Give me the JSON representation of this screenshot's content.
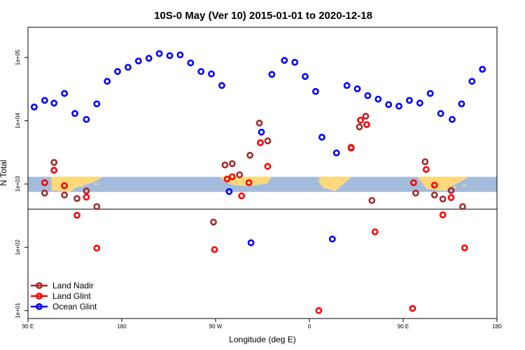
{
  "chart_data": {
    "type": "scatter",
    "title": "10S-0 May (Ver 10)   2015-01-01 to 2020-12-18",
    "xlabel": "Longitude (deg E)",
    "ylabel": "N Total",
    "x_scale": "linear",
    "y_scale": "log",
    "xlim": [
      90,
      540
    ],
    "ylim": [
      7.5,
      300000
    ],
    "x_tick_values": [
      90,
      180,
      270,
      360,
      450,
      540
    ],
    "x_tick_labels": [
      "90 E",
      "180",
      "90 W",
      "0",
      "90 E",
      "180"
    ],
    "y_tick_values": [
      10,
      100,
      1000,
      10000,
      100000
    ],
    "y_tick_labels": [
      "1e+01",
      "1e+02",
      "1e+03",
      "1e+04",
      "1e+05"
    ],
    "reference_line_y": 400,
    "map_band": {
      "y_low": 750,
      "y_high": 1300
    },
    "grid": false,
    "legend_position": "bottom-left",
    "series": [
      {
        "name": "Land Nadir",
        "color": "#a52a2a",
        "points": [
          [
            106,
            720
          ],
          [
            115,
            2200
          ],
          [
            125,
            670
          ],
          [
            137,
            590
          ],
          [
            146,
            780
          ],
          [
            156,
            440
          ],
          [
            268,
            250
          ],
          [
            279,
            2000
          ],
          [
            286,
            2100
          ],
          [
            293,
            1400
          ],
          [
            303,
            2850
          ],
          [
            312,
            9200
          ],
          [
            320,
            4800
          ],
          [
            400,
            3800
          ],
          [
            408,
            8000
          ],
          [
            414,
            11800
          ],
          [
            420,
            550
          ],
          [
            462,
            720
          ],
          [
            471,
            2250
          ],
          [
            480,
            670
          ],
          [
            488,
            580
          ],
          [
            496,
            790
          ],
          [
            507,
            440
          ]
        ]
      },
      {
        "name": "Land Glint",
        "color": "#ff0000",
        "points": [
          [
            106,
            1050
          ],
          [
            115,
            1650
          ],
          [
            125,
            940
          ],
          [
            137,
            320
          ],
          [
            146,
            620
          ],
          [
            156,
            97
          ],
          [
            269,
            92
          ],
          [
            281,
            1200
          ],
          [
            286,
            1300
          ],
          [
            295,
            650
          ],
          [
            302,
            1050
          ],
          [
            313,
            4500
          ],
          [
            320,
            1900
          ],
          [
            369,
            10
          ],
          [
            400,
            3700
          ],
          [
            409,
            10200
          ],
          [
            415,
            8700
          ],
          [
            423,
            175
          ],
          [
            459,
            10.8
          ],
          [
            460,
            1050
          ],
          [
            472,
            1700
          ],
          [
            480,
            960
          ],
          [
            488,
            325
          ],
          [
            496,
            610
          ],
          [
            509,
            98
          ]
        ]
      },
      {
        "name": "Ocean Glint",
        "color": "#0000ff",
        "points": [
          [
            96,
            16500
          ],
          [
            106,
            21000
          ],
          [
            115,
            19000
          ],
          [
            125,
            27000
          ],
          [
            135,
            13000
          ],
          [
            146,
            10500
          ],
          [
            156,
            18500
          ],
          [
            166,
            42000
          ],
          [
            176,
            60000
          ],
          [
            186,
            70000
          ],
          [
            196,
            88000
          ],
          [
            206,
            97000
          ],
          [
            216,
            115000
          ],
          [
            226,
            107000
          ],
          [
            236,
            110000
          ],
          [
            246,
            82000
          ],
          [
            256,
            60000
          ],
          [
            266,
            55000
          ],
          [
            276,
            36000
          ],
          [
            283,
            760
          ],
          [
            304,
            118
          ],
          [
            314,
            6600
          ],
          [
            324,
            54000
          ],
          [
            336,
            90000
          ],
          [
            346,
            84000
          ],
          [
            356,
            50000
          ],
          [
            366,
            29000
          ],
          [
            372,
            5500
          ],
          [
            382,
            135
          ],
          [
            386,
            3100
          ],
          [
            396,
            36000
          ],
          [
            406,
            32000
          ],
          [
            416,
            25000
          ],
          [
            426,
            22000
          ],
          [
            436,
            18000
          ],
          [
            446,
            17000
          ],
          [
            456,
            21000
          ],
          [
            466,
            19000
          ],
          [
            476,
            27000
          ],
          [
            486,
            13000
          ],
          [
            497,
            10500
          ],
          [
            506,
            18500
          ],
          [
            516,
            42000
          ],
          [
            526,
            65000
          ]
        ]
      }
    ]
  }
}
